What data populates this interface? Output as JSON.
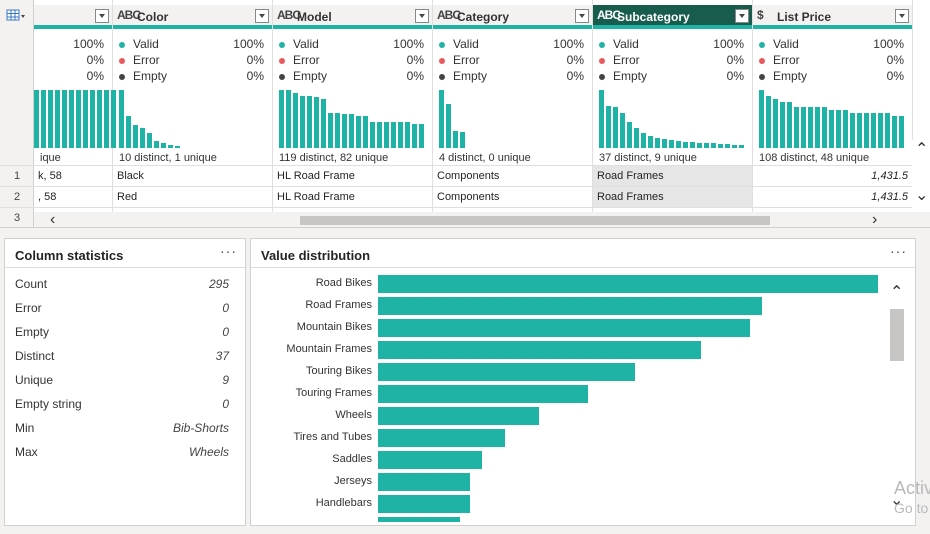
{
  "grid": {
    "rows": [
      "1",
      "2",
      "3"
    ],
    "columns": [
      {
        "key": "partial",
        "title": "",
        "type_icon": "",
        "valid_pct": "100%",
        "error_pct": "0%",
        "empty_pct": "0%",
        "distinct_text": "ique",
        "hist": [
          1,
          1,
          1,
          1,
          1,
          1,
          1,
          1,
          1,
          1,
          1,
          1
        ],
        "cells": [
          "k, 58",
          ", 58"
        ],
        "numeric": false
      },
      {
        "key": "color",
        "title": "Color",
        "type_icon": "ABC",
        "valid_label": "Valid",
        "error_label": "Error",
        "empty_label": "Empty",
        "valid_pct": "100%",
        "error_pct": "0%",
        "empty_pct": "0%",
        "distinct_text": "10 distinct, 1 unique",
        "hist": [
          1,
          0.55,
          0.4,
          0.35,
          0.25,
          0.12,
          0.08,
          0.05,
          0.03
        ],
        "cells": [
          "Black",
          "Red"
        ],
        "numeric": false
      },
      {
        "key": "model",
        "title": "Model",
        "type_icon": "ABC",
        "valid_label": "Valid",
        "error_label": "Error",
        "empty_label": "Empty",
        "valid_pct": "100%",
        "error_pct": "0%",
        "empty_pct": "0%",
        "distinct_text": "119 distinct, 82 unique",
        "hist": [
          1,
          1,
          0.95,
          0.9,
          0.9,
          0.88,
          0.85,
          0.6,
          0.6,
          0.58,
          0.58,
          0.55,
          0.55,
          0.45,
          0.45,
          0.45,
          0.45,
          0.45,
          0.45,
          0.42,
          0.42
        ],
        "cells": [
          "HL Road Frame",
          "HL Road Frame"
        ],
        "numeric": false
      },
      {
        "key": "category",
        "title": "Category",
        "type_icon": "ABC",
        "valid_label": "Valid",
        "error_label": "Error",
        "empty_label": "Empty",
        "valid_pct": "100%",
        "error_pct": "0%",
        "empty_pct": "0%",
        "distinct_text": "4 distinct, 0 unique",
        "hist": [
          1,
          0.75,
          0.3,
          0.28
        ],
        "cells": [
          "Components",
          "Components"
        ],
        "numeric": false
      },
      {
        "key": "subcategory",
        "title": "Subcategory",
        "type_icon": "ABC",
        "selected": true,
        "valid_label": "Valid",
        "error_label": "Error",
        "empty_label": "Empty",
        "valid_pct": "100%",
        "error_pct": "0%",
        "empty_pct": "0%",
        "distinct_text": "37 distinct, 9 unique",
        "hist": [
          1,
          0.72,
          0.7,
          0.6,
          0.45,
          0.35,
          0.25,
          0.2,
          0.18,
          0.16,
          0.14,
          0.12,
          0.11,
          0.1,
          0.09,
          0.08,
          0.08,
          0.07,
          0.07,
          0.06,
          0.06
        ],
        "cells": [
          "Road Frames",
          "Road Frames"
        ],
        "numeric": false
      },
      {
        "key": "list_price",
        "title": "List Price",
        "type_icon": "$",
        "valid_label": "Valid",
        "error_label": "Error",
        "empty_label": "Empty",
        "valid_pct": "100%",
        "error_pct": "0%",
        "empty_pct": "0%",
        "distinct_text": "108 distinct, 48 unique",
        "hist": [
          1,
          0.9,
          0.85,
          0.8,
          0.8,
          0.7,
          0.7,
          0.7,
          0.7,
          0.7,
          0.65,
          0.65,
          0.65,
          0.6,
          0.6,
          0.6,
          0.6,
          0.6,
          0.6,
          0.55,
          0.55
        ],
        "cells": [
          "1,431.5",
          "1,431.5"
        ],
        "numeric": true
      }
    ]
  },
  "column_statistics": {
    "title": "Column statistics",
    "more": "···",
    "rows": [
      {
        "label": "Count",
        "value": "295"
      },
      {
        "label": "Error",
        "value": "0"
      },
      {
        "label": "Empty",
        "value": "0"
      },
      {
        "label": "Distinct",
        "value": "37"
      },
      {
        "label": "Unique",
        "value": "9"
      },
      {
        "label": "Empty string",
        "value": "0"
      },
      {
        "label": "Min",
        "value": "Bib-Shorts"
      },
      {
        "label": "Max",
        "value": "Wheels"
      }
    ]
  },
  "value_distribution": {
    "title": "Value distribution",
    "more": "···",
    "max": 46,
    "items": [
      {
        "label": "Road Bikes",
        "value": 46
      },
      {
        "label": "Road Frames",
        "value": 35.3
      },
      {
        "label": "Mountain Bikes",
        "value": 34.2
      },
      {
        "label": "Mountain Frames",
        "value": 29.7
      },
      {
        "label": "Touring Bikes",
        "value": 23.6
      },
      {
        "label": "Touring Frames",
        "value": 19.3
      },
      {
        "label": "Wheels",
        "value": 14.8
      },
      {
        "label": "Tires and Tubes",
        "value": 11.7
      },
      {
        "label": "Saddles",
        "value": 9.6
      },
      {
        "label": "Jerseys",
        "value": 8.5
      },
      {
        "label": "Handlebars",
        "value": 8.5
      },
      {
        "label": "",
        "value": 7.5
      }
    ]
  },
  "colors": {
    "accent": "#1fb3a5",
    "selected_header": "#185c4d",
    "valid": "#1fb3a5",
    "error": "#e8585c",
    "empty": "#444444"
  },
  "watermark": {
    "line1": "Activ",
    "line2": "Go to"
  }
}
